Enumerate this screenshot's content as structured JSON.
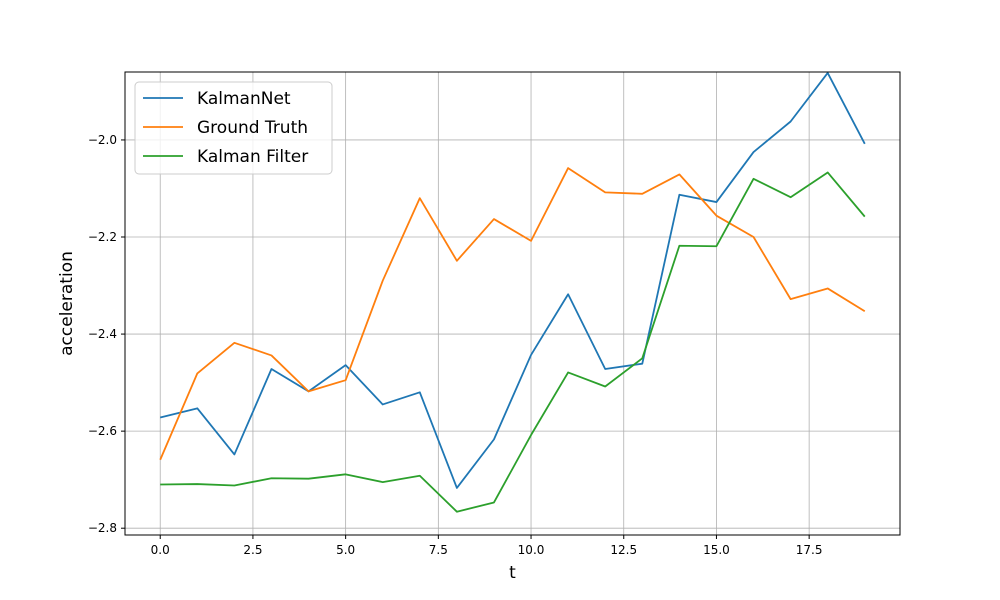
{
  "chart_data": {
    "type": "line",
    "title": "",
    "xlabel": "t",
    "ylabel": "acceleration",
    "xlim": [
      -0.95,
      19.95
    ],
    "ylim": [
      -2.814,
      -1.86
    ],
    "xticks": [
      0,
      2.5,
      5,
      7.5,
      10,
      12.5,
      15,
      17.5
    ],
    "xtick_labels": [
      "0.0",
      "2.5",
      "5.0",
      "7.5",
      "10.0",
      "12.5",
      "15.0",
      "17.5"
    ],
    "yticks": [
      -2.8,
      -2.6,
      -2.4,
      -2.2,
      -2.0
    ],
    "ytick_labels": [
      "−2.8",
      "−2.6",
      "−2.4",
      "−2.2",
      "−2.0"
    ],
    "grid": true,
    "legend_position": "top-left",
    "x": [
      0,
      1,
      2,
      3,
      4,
      5,
      6,
      7,
      8,
      9,
      10,
      11,
      12,
      13,
      14,
      15,
      16,
      17,
      18,
      19
    ],
    "series": [
      {
        "name": "KalmanNet",
        "color": "#1f77b4",
        "values": [
          -2.572,
          -2.553,
          -2.648,
          -2.472,
          -2.518,
          -2.464,
          -2.545,
          -2.52,
          -2.717,
          -2.617,
          -2.443,
          -2.318,
          -2.472,
          -2.461,
          -2.113,
          -2.128,
          -2.025,
          -1.962,
          -1.862,
          -2.008
        ]
      },
      {
        "name": "Ground Truth",
        "color": "#ff7f0e",
        "values": [
          -2.659,
          -2.481,
          -2.418,
          -2.444,
          -2.518,
          -2.495,
          -2.29,
          -2.12,
          -2.249,
          -2.163,
          -2.208,
          -2.058,
          -2.108,
          -2.111,
          -2.071,
          -2.156,
          -2.2,
          -2.328,
          -2.306,
          -2.353
        ]
      },
      {
        "name": "Kalman Filter",
        "color": "#2ca02c",
        "values": [
          -2.71,
          -2.709,
          -2.712,
          -2.697,
          -2.698,
          -2.689,
          -2.705,
          -2.692,
          -2.766,
          -2.747,
          -2.608,
          -2.479,
          -2.508,
          -2.45,
          -2.218,
          -2.219,
          -2.08,
          -2.118,
          -2.067,
          -2.158
        ]
      }
    ]
  }
}
